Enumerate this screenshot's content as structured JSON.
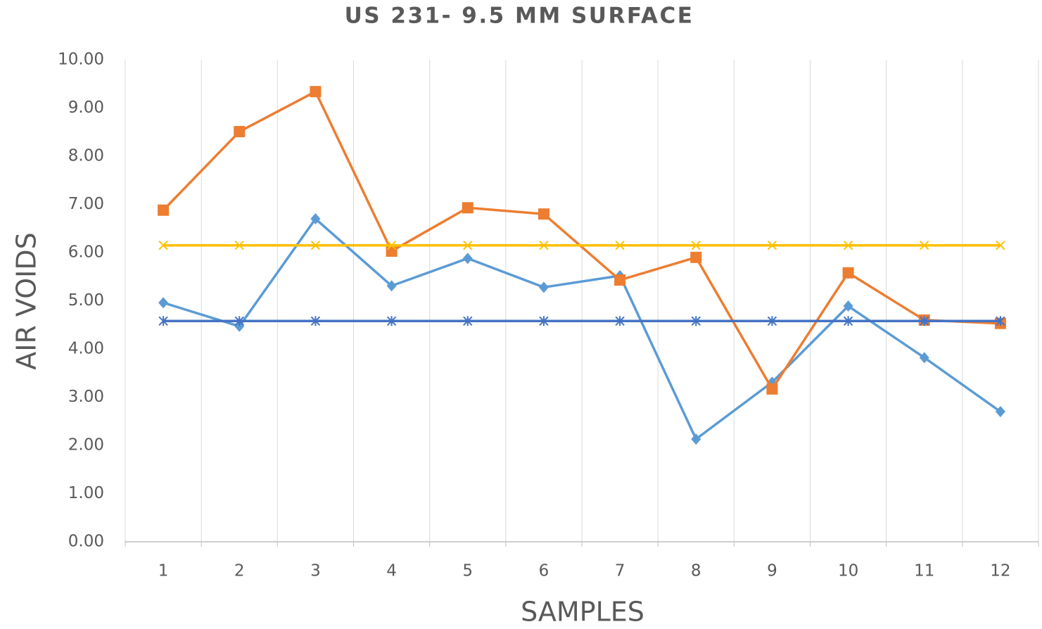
{
  "chart_data": {
    "type": "line",
    "title": "US 231- 9.5 MM SURFACE",
    "x_label": "SAMPLES",
    "y_label": "AIR VOIDS",
    "categories": [
      "1",
      "2",
      "3",
      "4",
      "5",
      "6",
      "7",
      "8",
      "9",
      "10",
      "11",
      "12"
    ],
    "series": [
      {
        "color": "#5b9bd5",
        "marker": "diamond",
        "values": [
          4.96,
          4.47,
          6.7,
          5.31,
          5.88,
          5.28,
          5.52,
          2.13,
          3.31,
          4.89,
          3.82,
          2.7
        ]
      },
      {
        "color": "#ed7d31",
        "marker": "square",
        "values": [
          6.88,
          8.51,
          9.34,
          6.03,
          6.93,
          6.8,
          5.43,
          5.9,
          3.17,
          5.58,
          4.6,
          4.53
        ]
      },
      {
        "color": "#ffc000",
        "marker": "x",
        "values": [
          6.15,
          6.15,
          6.15,
          6.15,
          6.15,
          6.15,
          6.15,
          6.15,
          6.15,
          6.15,
          6.15,
          6.15
        ]
      },
      {
        "color": "#4472c4",
        "marker": "star",
        "values": [
          4.58,
          4.58,
          4.58,
          4.58,
          4.58,
          4.58,
          4.58,
          4.58,
          4.58,
          4.58,
          4.58,
          4.58
        ]
      }
    ],
    "ylim": [
      0,
      10
    ],
    "yticks": [
      {
        "value": 0,
        "label": "0.00"
      },
      {
        "value": 1,
        "label": "1.00"
      },
      {
        "value": 2,
        "label": "2.00"
      },
      {
        "value": 3,
        "label": "3.00"
      },
      {
        "value": 4,
        "label": "4.00"
      },
      {
        "value": 5,
        "label": "5.00"
      },
      {
        "value": 6,
        "label": "6.00"
      },
      {
        "value": 7,
        "label": "7.00"
      },
      {
        "value": 8,
        "label": "8.00"
      },
      {
        "value": 9,
        "label": "9.00"
      },
      {
        "value": 10,
        "label": "10.00"
      }
    ],
    "vertical_grid": true
  }
}
